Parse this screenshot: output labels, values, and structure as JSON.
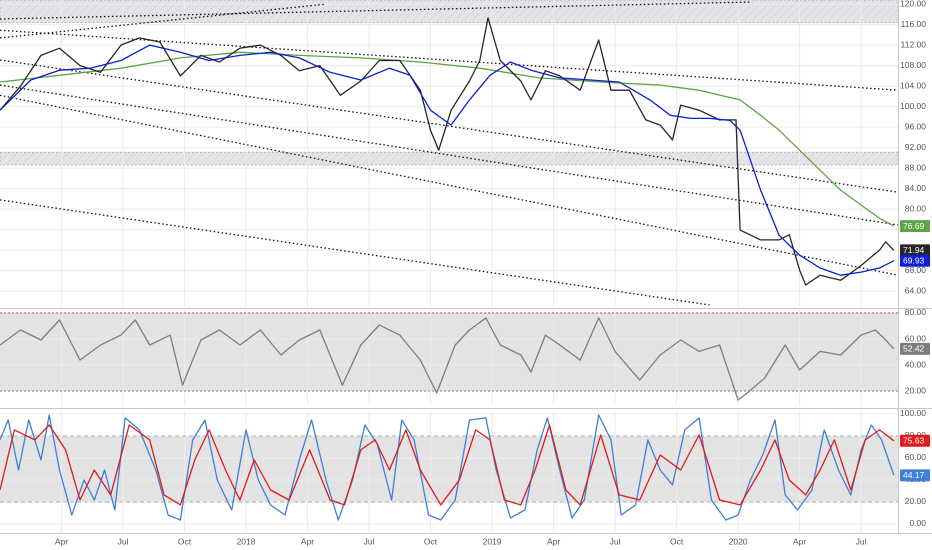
{
  "chart_data": [
    {
      "type": "line",
      "xlim": [
        0,
        43.8
      ],
      "ylim": [
        60.9,
        120.8
      ],
      "yticks": [
        {
          "value": 64,
          "label": "64.00"
        },
        {
          "value": 68,
          "label": "68.00"
        },
        {
          "value": 72,
          "label": "72.00"
        },
        {
          "value": 76,
          "label": "76.00"
        },
        {
          "value": 80,
          "label": "80.00"
        },
        {
          "value": 84,
          "label": "84.00"
        },
        {
          "value": 88,
          "label": "88.00"
        },
        {
          "value": 92,
          "label": "92.00"
        },
        {
          "value": 96,
          "label": "96.00"
        },
        {
          "value": 100,
          "label": "100.00"
        },
        {
          "value": 104,
          "label": "104.00"
        },
        {
          "value": 108,
          "label": "108.00"
        },
        {
          "value": 112,
          "label": "112.00"
        },
        {
          "value": 116,
          "label": "116.00"
        },
        {
          "value": 120,
          "label": "120.00"
        }
      ],
      "grid": true,
      "bands": [
        [
          116.4,
          120.8
        ],
        [
          88.6,
          91.1
        ]
      ],
      "trendlines": [
        {
          "x": [
            0,
            36.6
          ],
          "y": [
            117.1,
            120.4
          ]
        },
        {
          "x": [
            0,
            15.9
          ],
          "y": [
            113.4,
            120
          ]
        },
        {
          "x": [
            0,
            43.8
          ],
          "y": [
            114.9,
            103.2
          ]
        },
        {
          "x": [
            0,
            43.8
          ],
          "y": [
            109.1,
            83.3
          ]
        },
        {
          "x": [
            0,
            43.8
          ],
          "y": [
            104.2,
            76.9
          ]
        },
        {
          "x": [
            0,
            43.8
          ],
          "y": [
            102.2,
            67.1
          ]
        },
        {
          "x": [
            0,
            34.6
          ],
          "y": [
            81.8,
            61.3
          ]
        }
      ],
      "series": [
        {
          "color": "#5ea345",
          "tag_text": "#ffffff",
          "x": [
            0,
            2.9,
            5.9,
            8.8,
            11.7,
            14.6,
            17.6,
            20.5,
            23.4,
            26.3,
            29.3,
            32.2,
            34.1,
            36.1,
            37.1,
            38.0,
            39.0,
            40.0,
            41.0,
            42.0,
            42.9,
            43.6
          ],
          "values": [
            104.8,
            106.1,
            107.5,
            109.5,
            110.6,
            110,
            109.5,
            108.7,
            107.5,
            105.6,
            104.8,
            104.2,
            103.2,
            101.3,
            98.3,
            95.4,
            91.5,
            87.6,
            83.7,
            80.8,
            78.2,
            76.69
          ]
        },
        {
          "color": "#262626",
          "tag_text": "#ffffff",
          "x": [
            0,
            1.0,
            2.0,
            2.9,
            3.9,
            4.9,
            5.9,
            6.8,
            7.8,
            8.8,
            9.8,
            10.7,
            11.7,
            12.7,
            13.7,
            14.6,
            15.6,
            16.6,
            17.6,
            18.5,
            19.5,
            20.5,
            21.0,
            21.4,
            22.0,
            22.9,
            23.4,
            23.8,
            24.4,
            25.4,
            25.9,
            26.6,
            27.3,
            28.3,
            29.2,
            29.8,
            30.7,
            31.5,
            32.2,
            32.8,
            33.2,
            34.1,
            35.1,
            35.9,
            36.1,
            37.1,
            38.0,
            38.5,
            39.0,
            39.3,
            40.0,
            41.0,
            42.0,
            42.9,
            43.2,
            43.6
          ],
          "values": [
            99.3,
            104,
            110,
            111.4,
            108,
            106.7,
            112,
            113.4,
            112.6,
            106,
            110,
            108.7,
            111.4,
            112,
            110,
            107,
            108,
            102.2,
            105,
            109,
            109,
            103.2,
            95.4,
            91.5,
            99.3,
            105,
            109,
            117.3,
            109,
            105,
            101.3,
            107,
            106,
            103.2,
            113,
            103.2,
            103.2,
            97.4,
            96.4,
            93.5,
            100.3,
            99.3,
            97.4,
            97.4,
            75.9,
            74,
            74,
            75,
            68.1,
            65.2,
            67.1,
            66.1,
            69,
            72,
            73.6,
            71.94
          ]
        },
        {
          "color": "#0d1fd1",
          "tag_text": "#ffffff",
          "x": [
            0,
            1.5,
            2.9,
            4.4,
            5.9,
            7.3,
            8.8,
            10.2,
            11.7,
            13.2,
            14.6,
            16.1,
            17.6,
            19.0,
            20.0,
            21.0,
            22.0,
            22.9,
            23.9,
            24.9,
            25.9,
            27.3,
            28.8,
            30.2,
            31.7,
            32.7,
            33.7,
            34.6,
            35.6,
            36.1,
            37.1,
            38.0,
            39.0,
            40.0,
            41.0,
            42.0,
            42.9,
            43.6
          ],
          "values": [
            99.3,
            105.2,
            107.1,
            107.5,
            109,
            112,
            110.6,
            109,
            110,
            110.6,
            109.5,
            106.7,
            105.2,
            107.5,
            106.1,
            99.3,
            96.4,
            101.3,
            106.1,
            108.7,
            107.1,
            105.6,
            105.2,
            104.8,
            101.3,
            98.3,
            97.7,
            97.7,
            97.3,
            95.4,
            83.7,
            74.9,
            71,
            68.5,
            67.1,
            67.7,
            68.5,
            69.93
          ]
        }
      ]
    },
    {
      "type": "line",
      "xlim": [
        0,
        43.8
      ],
      "ylim": [
        8.5,
        82.3
      ],
      "yticks": [
        {
          "value": 20,
          "label": "20.00"
        },
        {
          "value": 40,
          "label": "40.00"
        },
        {
          "value": 60,
          "label": "60.00"
        },
        {
          "value": 80,
          "label": "80.00"
        }
      ],
      "grid": true,
      "fill_band": [
        20,
        80
      ],
      "hlines": [
        {
          "value": 80,
          "color": "#e53935"
        },
        {
          "value": 20,
          "color": "#43a047"
        }
      ],
      "series": [
        {
          "color": "#7d7d7d",
          "tag_text": "#ffffff",
          "x": [
            0,
            1.0,
            2.0,
            2.9,
            3.9,
            4.9,
            5.9,
            6.6,
            7.3,
            8.3,
            8.9,
            9.8,
            10.7,
            11.7,
            12.7,
            13.7,
            14.6,
            15.6,
            16.7,
            17.6,
            18.5,
            19.5,
            20.5,
            21.3,
            22.2,
            22.9,
            23.7,
            24.4,
            25.4,
            25.9,
            26.6,
            27.3,
            28.3,
            29.2,
            30.0,
            31.2,
            32.2,
            33.2,
            34.1,
            35.1,
            36.0,
            36.5,
            37.3,
            38.3,
            39.0,
            40.0,
            41.0,
            42.0,
            42.7,
            43.2,
            43.6
          ],
          "values": [
            55.4,
            66.9,
            59.2,
            74.6,
            43.8,
            55.4,
            63,
            74.6,
            55.4,
            63,
            24.6,
            59.2,
            66.9,
            55.4,
            66.9,
            47.7,
            59.2,
            66.9,
            24.6,
            55.4,
            70.8,
            63,
            43.8,
            18.5,
            55.4,
            66.9,
            76.2,
            55.4,
            47.7,
            34.6,
            63,
            55.4,
            43.8,
            76.2,
            50.5,
            28.5,
            47.7,
            59.2,
            50.5,
            55.4,
            13.1,
            19.2,
            30,
            55.4,
            36.2,
            50.5,
            47.7,
            63,
            66.9,
            59.2,
            52.42
          ]
        }
      ]
    },
    {
      "type": "line",
      "xlim": [
        0,
        43.8
      ],
      "ylim": [
        -7.3,
        102.7
      ],
      "yticks": [
        {
          "value": 0,
          "label": "0.00"
        },
        {
          "value": 20,
          "label": "20.00"
        },
        {
          "value": 40,
          "label": "40.00"
        },
        {
          "value": 60,
          "label": "60.00"
        },
        {
          "value": 80,
          "label": "80.00"
        },
        {
          "value": 100,
          "label": "100.00"
        }
      ],
      "grid": true,
      "fill_band": [
        20,
        80
      ],
      "dashed_lines": [
        20,
        80
      ],
      "xticks": [
        {
          "value": 3,
          "label": "Apr"
        },
        {
          "value": 6,
          "label": "Jul"
        },
        {
          "value": 9,
          "label": "Oct"
        },
        {
          "value": 12,
          "label": "2018"
        },
        {
          "value": 15,
          "label": "Apr"
        },
        {
          "value": 18,
          "label": "Jul"
        },
        {
          "value": 21,
          "label": "Oct"
        },
        {
          "value": 24,
          "label": "2019"
        },
        {
          "value": 27,
          "label": "Apr"
        },
        {
          "value": 30,
          "label": "Jul"
        },
        {
          "value": 33,
          "label": "Oct"
        },
        {
          "value": 36,
          "label": "2020"
        },
        {
          "value": 39,
          "label": "Apr"
        },
        {
          "value": 42,
          "label": "Jul"
        }
      ],
      "series": [
        {
          "color": "#3f7fd6",
          "tag_text": "#ffffff",
          "x": [
            0,
            0.4,
            0.9,
            1.4,
            2.0,
            2.4,
            2.9,
            3.5,
            4.1,
            4.6,
            5.1,
            5.6,
            6.1,
            6.8,
            7.6,
            8.2,
            8.8,
            9.4,
            10.0,
            10.6,
            11.3,
            12.0,
            12.6,
            13.2,
            13.9,
            14.6,
            15.2,
            15.9,
            16.5,
            17.2,
            17.8,
            18.4,
            19.1,
            19.6,
            20.2,
            20.9,
            21.5,
            22.2,
            22.9,
            23.7,
            24.2,
            24.9,
            25.6,
            26.2,
            26.7,
            27.3,
            27.9,
            28.5,
            29.2,
            29.8,
            30.3,
            31.0,
            31.6,
            32.2,
            32.8,
            33.4,
            34.1,
            34.7,
            35.4,
            36.0,
            36.6,
            37.2,
            37.8,
            38.3,
            38.9,
            39.6,
            40.2,
            40.9,
            41.5,
            42.0,
            42.5,
            43.0,
            43.6
          ],
          "values": [
            76.4,
            94.5,
            49.1,
            94.5,
            58.2,
            99.1,
            49.1,
            8.2,
            40,
            21.8,
            49.1,
            12.7,
            96.4,
            85.5,
            49.1,
            8.2,
            3.6,
            76.4,
            94.5,
            40,
            12.7,
            85.5,
            40,
            17.3,
            8.2,
            58.2,
            94.5,
            40,
            3.6,
            40,
            90,
            72.7,
            21.8,
            94.5,
            76.4,
            8.2,
            3.6,
            21.8,
            94.5,
            96.4,
            49.1,
            5.5,
            12.7,
            67.3,
            96.4,
            49.1,
            5.5,
            21.8,
            99.1,
            76.4,
            8.2,
            17.3,
            76.4,
            49.1,
            35.5,
            85.5,
            96.4,
            21.8,
            3.6,
            8.2,
            40,
            62.7,
            94.5,
            26.4,
            12.7,
            30.9,
            85.5,
            49.1,
            26.4,
            67.3,
            90,
            76.4,
            44.17
          ]
        },
        {
          "color": "#e01b1b",
          "tag_text": "#ffffff",
          "x": [
            0,
            0.7,
            1.7,
            2.4,
            3.2,
            3.9,
            4.6,
            5.4,
            6.3,
            7.3,
            8.0,
            8.8,
            9.5,
            10.2,
            11.0,
            11.7,
            12.4,
            13.2,
            14.1,
            15.1,
            16.1,
            16.8,
            17.6,
            18.3,
            19.0,
            19.8,
            20.5,
            21.5,
            22.4,
            23.2,
            23.9,
            24.6,
            25.4,
            26.1,
            26.8,
            27.6,
            28.3,
            29.3,
            30.2,
            31.2,
            32.2,
            33.2,
            34.1,
            35.1,
            36.1,
            37.1,
            37.8,
            38.5,
            39.3,
            40.0,
            40.7,
            41.5,
            42.2,
            42.9,
            43.6
          ],
          "values": [
            30.9,
            85.5,
            76.4,
            90,
            67.3,
            21.8,
            49.1,
            26.4,
            90,
            76.4,
            26.4,
            17.3,
            58.2,
            85.5,
            49.1,
            21.8,
            58.2,
            30.9,
            21.8,
            67.3,
            21.8,
            17.3,
            67.3,
            76.4,
            49.1,
            85.5,
            49.1,
            17.3,
            40,
            85.5,
            76.4,
            21.8,
            17.3,
            49.1,
            90,
            30.9,
            17.3,
            80.9,
            26.4,
            21.8,
            62.7,
            49.1,
            80.9,
            21.8,
            17.3,
            49.1,
            76.4,
            40,
            26.4,
            49.1,
            76.4,
            30.9,
            76.4,
            85.5,
            75.63
          ]
        }
      ]
    }
  ]
}
